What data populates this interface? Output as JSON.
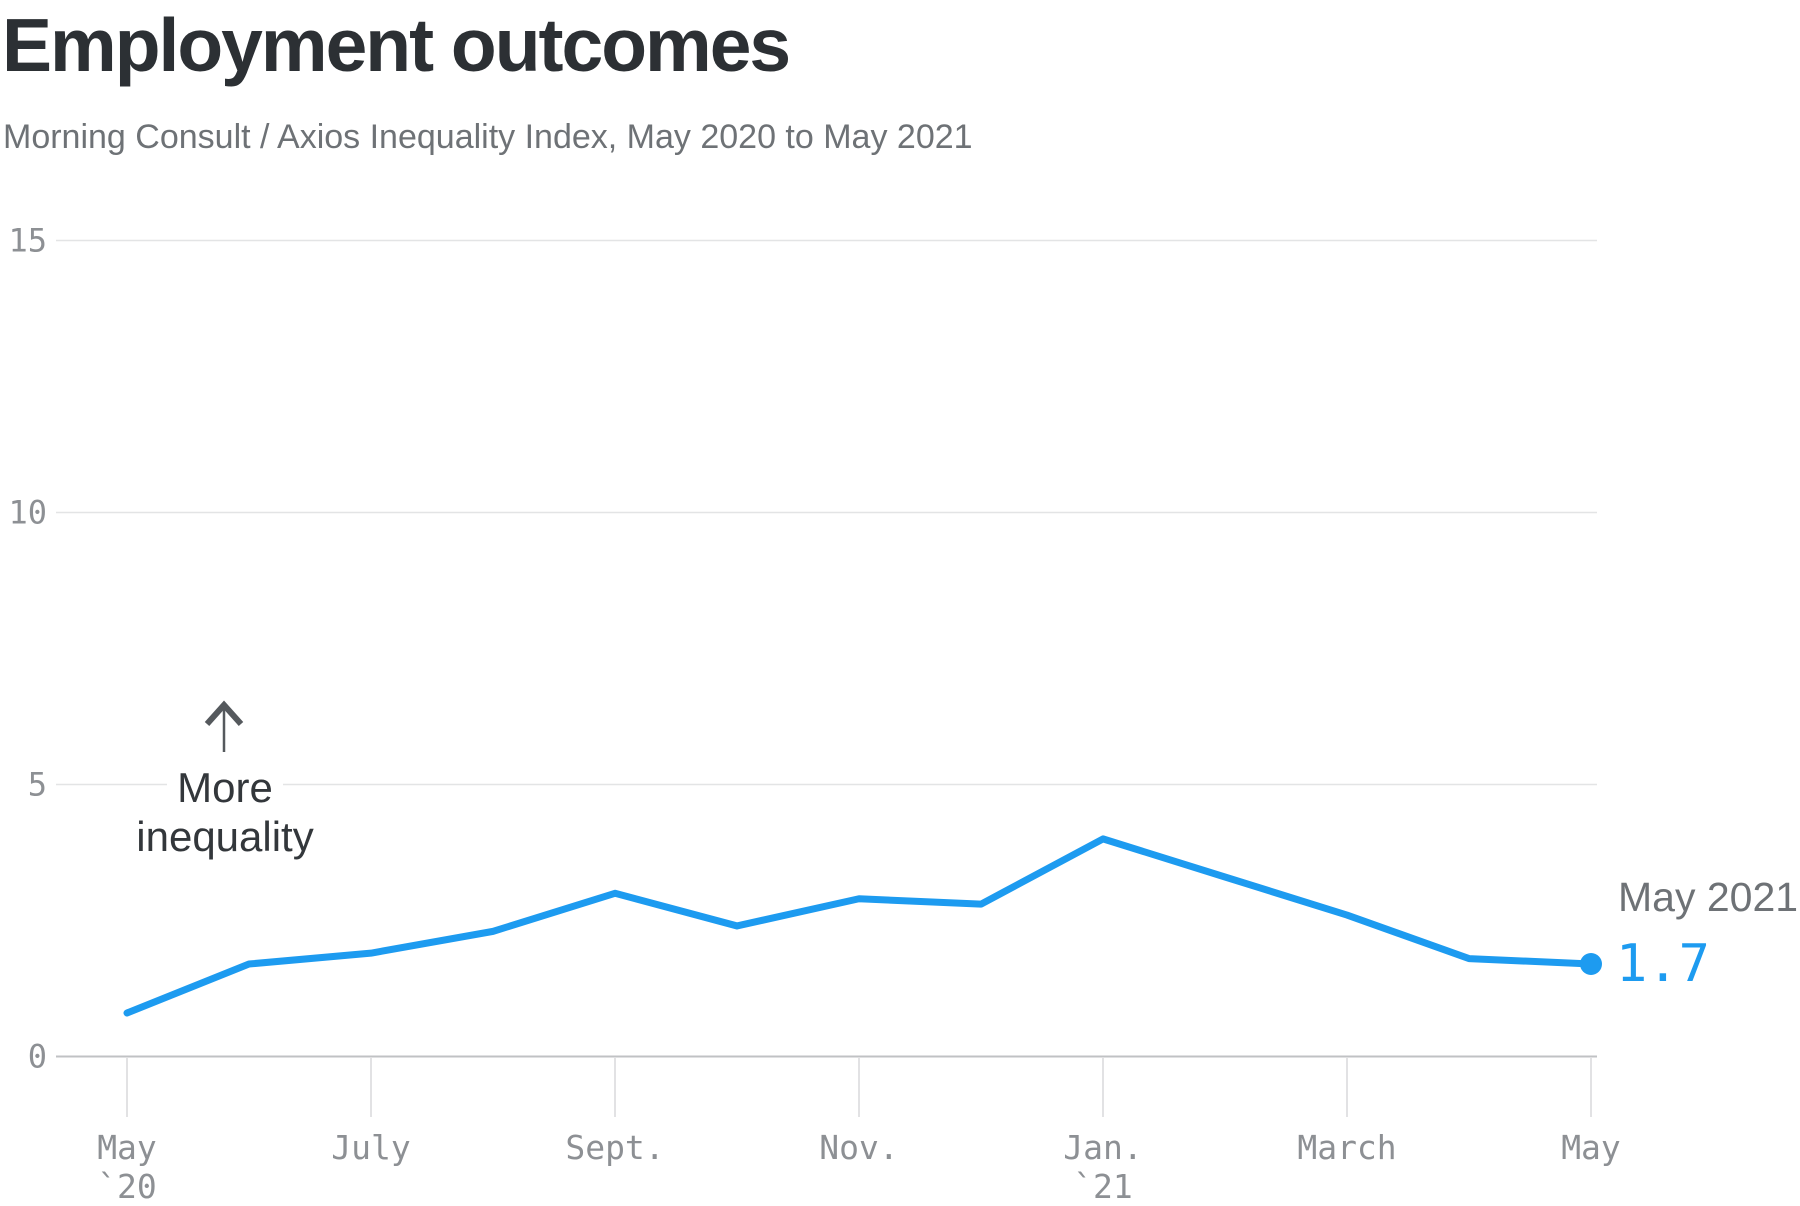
{
  "header": {
    "title": "Employment outcomes",
    "subtitle": "Morning Consult / Axios Inequality Index, May 2020 to May 2021"
  },
  "annotation": {
    "line1": "More",
    "line2": "inequality",
    "arrow_icon": "up-arrow"
  },
  "end_label": {
    "date": "May 2021",
    "value": "1.7"
  },
  "colors": {
    "line": "#1d9bf0",
    "grid": "#e3e4e5",
    "axis": "#c0c2c4",
    "tick": "#d8d9da",
    "tick_label": "#8d9094",
    "title": "#2c3034",
    "subtitle": "#6e7276",
    "annotation": "#33373b"
  },
  "chart_data": {
    "type": "line",
    "title": "Employment outcomes",
    "subtitle": "Morning Consult / Axios Inequality Index, May 2020 to May 2021",
    "x": [
      "May 2020",
      "June 2020",
      "July 2020",
      "Aug. 2020",
      "Sept. 2020",
      "Oct. 2020",
      "Nov. 2020",
      "Dec. 2020",
      "Jan. 2021",
      "Feb. 2021",
      "March 2021",
      "April 2021",
      "May 2021"
    ],
    "values": [
      0.8,
      1.7,
      1.9,
      2.3,
      3.0,
      2.4,
      2.9,
      2.8,
      4.0,
      3.3,
      2.6,
      1.8,
      1.7
    ],
    "ylim": [
      0,
      15
    ],
    "yticks": [
      0,
      5,
      10,
      15
    ],
    "xtick_labels": [
      {
        "label": "May",
        "year": "`20",
        "month_index": 0
      },
      {
        "label": "July",
        "year": "",
        "month_index": 2
      },
      {
        "label": "Sept.",
        "year": "",
        "month_index": 4
      },
      {
        "label": "Nov.",
        "year": "",
        "month_index": 6
      },
      {
        "label": "Jan.",
        "year": "`21",
        "month_index": 8
      },
      {
        "label": "March",
        "year": "",
        "month_index": 10
      },
      {
        "label": "May",
        "year": "",
        "month_index": 12
      }
    ],
    "grid": "horizontal gridlines on",
    "legend": "none",
    "end_point_label": {
      "date": "May 2021",
      "value": 1.7
    }
  }
}
